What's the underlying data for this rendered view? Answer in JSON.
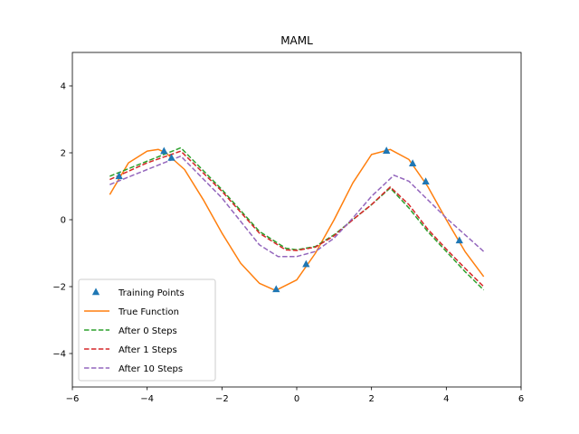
{
  "chart_data": {
    "type": "line",
    "title": "MAML",
    "xlabel": "",
    "ylabel": "",
    "xlim": [
      -6,
      6
    ],
    "ylim": [
      -5,
      5
    ],
    "xticks": [
      -6,
      -4,
      -2,
      0,
      2,
      4,
      6
    ],
    "yticks": [
      -4,
      -2,
      0,
      2,
      4
    ],
    "xtick_labels": [
      "−6",
      "−4",
      "−2",
      "0",
      "2",
      "4",
      "6"
    ],
    "ytick_labels": [
      "−4",
      "−2",
      "0",
      "2",
      "4"
    ],
    "grid": false,
    "legend_position": "lower-left",
    "series": [
      {
        "name": "Training Points",
        "style": "markers",
        "marker": "triangle",
        "color": "#1f77b4",
        "x": [
          -4.75,
          -3.55,
          -3.35,
          -0.55,
          0.25,
          2.4,
          3.1,
          3.45,
          4.35
        ],
        "y": [
          1.3,
          2.05,
          1.85,
          -2.08,
          -1.33,
          2.06,
          1.68,
          1.14,
          -0.62
        ]
      },
      {
        "name": "True Function",
        "style": "solid",
        "color": "#ff7f0e",
        "x": [
          -5.0,
          -4.5,
          -4.0,
          -3.7,
          -3.5,
          -3.0,
          -2.5,
          -2.0,
          -1.5,
          -1.0,
          -0.6,
          -0.5,
          0.0,
          0.5,
          1.0,
          1.5,
          2.0,
          2.5,
          3.0,
          3.5,
          4.0,
          4.5,
          5.0
        ],
        "y": [
          0.75,
          1.7,
          2.05,
          2.1,
          2.0,
          1.5,
          0.6,
          -0.4,
          -1.3,
          -1.9,
          -2.1,
          -2.08,
          -1.8,
          -1.0,
          0.0,
          1.1,
          1.95,
          2.1,
          1.8,
          1.0,
          0.0,
          -0.95,
          -1.7
        ]
      },
      {
        "name": "After 0 Steps",
        "style": "dashed",
        "color": "#2ca02c",
        "x": [
          -5.0,
          -4.0,
          -3.1,
          -2.0,
          -1.0,
          -0.3,
          0.0,
          0.5,
          1.0,
          1.5,
          2.0,
          2.5,
          3.0,
          3.5,
          4.0,
          4.5,
          5.0
        ],
        "y": [
          1.3,
          1.75,
          2.15,
          0.9,
          -0.35,
          -0.85,
          -0.9,
          -0.8,
          -0.45,
          0.0,
          0.45,
          0.95,
          0.35,
          -0.35,
          -0.95,
          -1.55,
          -2.1
        ]
      },
      {
        "name": "After 1 Steps",
        "style": "dashed",
        "color": "#d62728",
        "x": [
          -5.0,
          -4.0,
          -3.1,
          -2.0,
          -1.0,
          -0.3,
          0.0,
          0.5,
          1.0,
          1.5,
          2.0,
          2.5,
          3.0,
          3.5,
          4.0,
          4.5,
          5.0
        ],
        "y": [
          1.2,
          1.7,
          2.05,
          0.85,
          -0.4,
          -0.9,
          -0.92,
          -0.82,
          -0.48,
          0.0,
          0.45,
          0.98,
          0.45,
          -0.28,
          -0.88,
          -1.45,
          -2.0
        ]
      },
      {
        "name": "After 10 Steps",
        "style": "dashed",
        "color": "#9467bd",
        "x": [
          -5.0,
          -4.0,
          -3.1,
          -2.0,
          -1.0,
          -0.5,
          0.0,
          0.5,
          1.0,
          1.5,
          2.0,
          2.6,
          3.0,
          3.5,
          4.0,
          4.5,
          5.0
        ],
        "y": [
          1.05,
          1.5,
          1.9,
          0.65,
          -0.75,
          -1.1,
          -1.1,
          -0.95,
          -0.55,
          0.05,
          0.7,
          1.33,
          1.15,
          0.6,
          0.05,
          -0.45,
          -0.95
        ]
      }
    ]
  }
}
